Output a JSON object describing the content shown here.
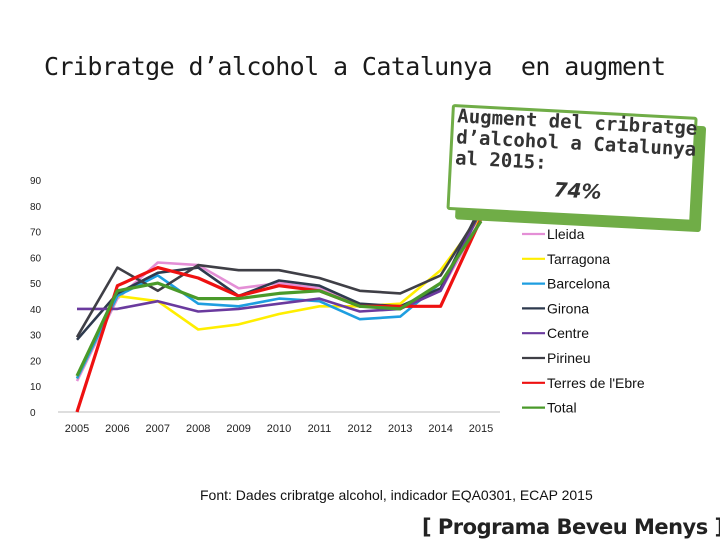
{
  "title": "Cribratge d’alcohol a Catalunya  en augment",
  "callout": {
    "text": "Augment del cribratge\nd’alcohol a Catalunya\nal 2015:",
    "value": "74%",
    "border_color": "#70ad47"
  },
  "source": "Font: Dades cribratge alcohol, indicador EQA0301,  ECAP 2015",
  "brand": "[ Programa Beveu Menys ]",
  "chart_data": {
    "type": "line",
    "title": "",
    "xlabel": "",
    "ylabel": "",
    "x": [
      "2005",
      "2006",
      "2007",
      "2008",
      "2009",
      "2010",
      "2011",
      "2012",
      "2013",
      "2014",
      "2015"
    ],
    "yticks": [
      0,
      10,
      20,
      30,
      40,
      50,
      60,
      70,
      80,
      90
    ],
    "ylim": [
      0,
      90
    ],
    "grid": false,
    "legend_position": "right",
    "series": [
      {
        "name": "Lleida",
        "color": "#e48fd6",
        "values": [
          12,
          44,
          58,
          57,
          48,
          50,
          48,
          41,
          40,
          47,
          75
        ]
      },
      {
        "name": "Tarragona",
        "color": "#ffee00",
        "values": [
          13,
          45,
          43,
          32,
          34,
          38,
          41,
          41,
          42,
          55,
          76
        ]
      },
      {
        "name": "Barcelona",
        "color": "#1e9ee0",
        "values": [
          13,
          45,
          53,
          42,
          41,
          44,
          43,
          36,
          37,
          50,
          74
        ]
      },
      {
        "name": "Girona",
        "color": "#2e3a4e",
        "values": [
          28,
          46,
          54,
          56,
          45,
          51,
          49,
          42,
          41,
          48,
          80
        ]
      },
      {
        "name": "Centre",
        "color": "#6a3a9e",
        "values": [
          40,
          40,
          43,
          39,
          40,
          42,
          44,
          39,
          40,
          47,
          78
        ]
      },
      {
        "name": "Pirineu",
        "color": "#3f3f46",
        "values": [
          29,
          56,
          47,
          57,
          55,
          55,
          52,
          47,
          46,
          53,
          78
        ]
      },
      {
        "name": "Terres de l'Ebre",
        "color": "#ee1111",
        "values": [
          0,
          49,
          56,
          52,
          45,
          49,
          47,
          41,
          41,
          41,
          75
        ]
      },
      {
        "name": "Total",
        "color": "#4a9a2a",
        "values": [
          14,
          47,
          50,
          44,
          44,
          46,
          47,
          41,
          40,
          50,
          74
        ]
      }
    ]
  }
}
